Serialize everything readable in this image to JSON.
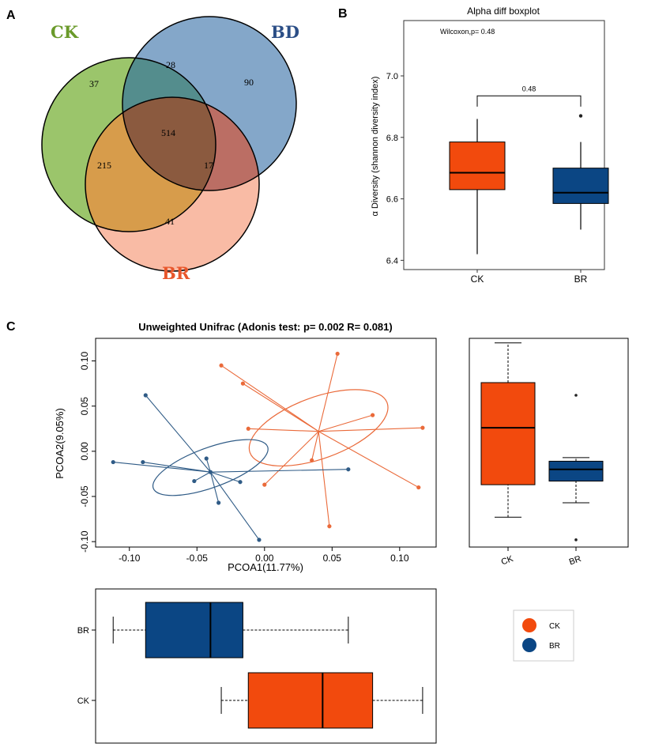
{
  "panels": {
    "a": "A",
    "b": "B",
    "c": "C"
  },
  "colors": {
    "ck": "#f24a0d",
    "br_box": "#0b4684",
    "venn_ck": "#9bc56b",
    "venn_bd": "#6f98bf",
    "venn_br": "#f7a487",
    "ck_label": "#6a9a2a",
    "bd_label": "#2b4e86",
    "br_label": "#e8572c",
    "pcoa_ck": "#ea6a3a",
    "pcoa_br": "#2f5b86"
  },
  "chart_data": [
    {
      "type": "venn",
      "sets": [
        "CK",
        "BD",
        "BR"
      ],
      "regions": {
        "CK_only": "37",
        "BD_only": "90",
        "BR_only": "41",
        "CK_BD": "28",
        "CK_BR": "215",
        "BD_BR": "17",
        "CK_BD_BR": "514"
      }
    },
    {
      "type": "box",
      "title": "Alpha diff boxplot",
      "annotation": "Wilcoxon,p= 0.48",
      "bracket_label": "0.48",
      "ylabel": "α Diversity (shannon diversity index)",
      "ylim": [
        6.37,
        7.18
      ],
      "yticks": [
        6.4,
        6.6,
        6.8,
        7.0
      ],
      "ytick_labels": [
        "6.4",
        "6.6",
        "6.8",
        "7.0"
      ],
      "categories": [
        "CK",
        "BR"
      ],
      "boxes": [
        {
          "name": "CK",
          "whisker_low": 6.42,
          "q1": 6.63,
          "median": 6.685,
          "q3": 6.785,
          "whisker_high": 6.86,
          "outliers": []
        },
        {
          "name": "BR",
          "whisker_low": 6.5,
          "q1": 6.585,
          "median": 6.62,
          "q3": 6.7,
          "whisker_high": 6.785,
          "outliers": [
            6.87
          ]
        }
      ]
    },
    {
      "type": "scatter",
      "title": "Unweighted Unifrac (Adonis test: p= 0.002  R= 0.081)",
      "xlabel": "PCOA1(11.77%)",
      "ylabel": "PCOA2(9.05%)",
      "xlim": [
        -0.125,
        0.127
      ],
      "ylim": [
        -0.106,
        0.125
      ],
      "xticks": [
        -0.1,
        -0.05,
        0.0,
        0.05,
        0.1
      ],
      "xtick_labels": [
        "-0.10",
        "-0.05",
        "0.00",
        "0.05",
        "0.10"
      ],
      "yticks": [
        -0.1,
        -0.05,
        0.0,
        0.05,
        0.1
      ],
      "ytick_labels": [
        "-0.10",
        "-0.05",
        "0.00",
        "0.05",
        "0.10"
      ],
      "series": [
        {
          "name": "CK",
          "centroid": [
            0.04,
            0.022
          ],
          "ellipse": {
            "center": [
              0.04,
              0.026
            ],
            "rx": 0.054,
            "ry": 0.034,
            "angle_deg": -20
          },
          "points": [
            [
              -0.032,
              0.095
            ],
            [
              -0.016,
              0.075
            ],
            [
              -0.012,
              0.025
            ],
            [
              0.0,
              -0.037
            ],
            [
              0.035,
              -0.01
            ],
            [
              0.048,
              -0.083
            ],
            [
              0.054,
              0.108
            ],
            [
              0.08,
              0.04
            ],
            [
              0.117,
              0.026
            ],
            [
              0.114,
              -0.04
            ]
          ]
        },
        {
          "name": "BR",
          "centroid": [
            -0.04,
            -0.023
          ],
          "ellipse": {
            "center": [
              -0.04,
              -0.018
            ],
            "rx": 0.045,
            "ry": 0.022,
            "angle_deg": -20
          },
          "points": [
            [
              -0.112,
              -0.012
            ],
            [
              -0.09,
              -0.012
            ],
            [
              -0.088,
              0.062
            ],
            [
              -0.052,
              -0.033
            ],
            [
              -0.043,
              -0.008
            ],
            [
              -0.04,
              -0.023
            ],
            [
              -0.034,
              -0.057
            ],
            [
              -0.018,
              -0.034
            ],
            [
              -0.004,
              -0.098
            ],
            [
              0.062,
              -0.02
            ]
          ]
        }
      ]
    },
    {
      "type": "box",
      "orientation": "vertical",
      "name": "PCOA2 marginal",
      "categories": [
        "CK",
        "BR"
      ],
      "boxes": [
        {
          "name": "CK",
          "whisker_low": -0.073,
          "q1": -0.037,
          "median": 0.026,
          "q3": 0.076,
          "whisker_high": 0.12,
          "outliers": []
        },
        {
          "name": "BR",
          "whisker_low": -0.057,
          "q1": -0.033,
          "median": -0.02,
          "q3": -0.011,
          "whisker_high": -0.007,
          "outliers": [
            0.062,
            -0.098
          ]
        }
      ]
    },
    {
      "type": "box",
      "orientation": "horizontal",
      "name": "PCOA1 marginal",
      "categories": [
        "BR",
        "CK"
      ],
      "boxes": [
        {
          "name": "BR",
          "whisker_low": -0.112,
          "q1": -0.088,
          "median": -0.04,
          "q3": -0.016,
          "whisker_high": 0.062,
          "outliers": []
        },
        {
          "name": "CK",
          "whisker_low": -0.032,
          "q1": -0.012,
          "median": 0.043,
          "q3": 0.08,
          "whisker_high": 0.117,
          "outliers": []
        }
      ]
    },
    {
      "type": "legend",
      "entries": [
        {
          "label": "CK"
        },
        {
          "label": "BR"
        }
      ]
    }
  ]
}
